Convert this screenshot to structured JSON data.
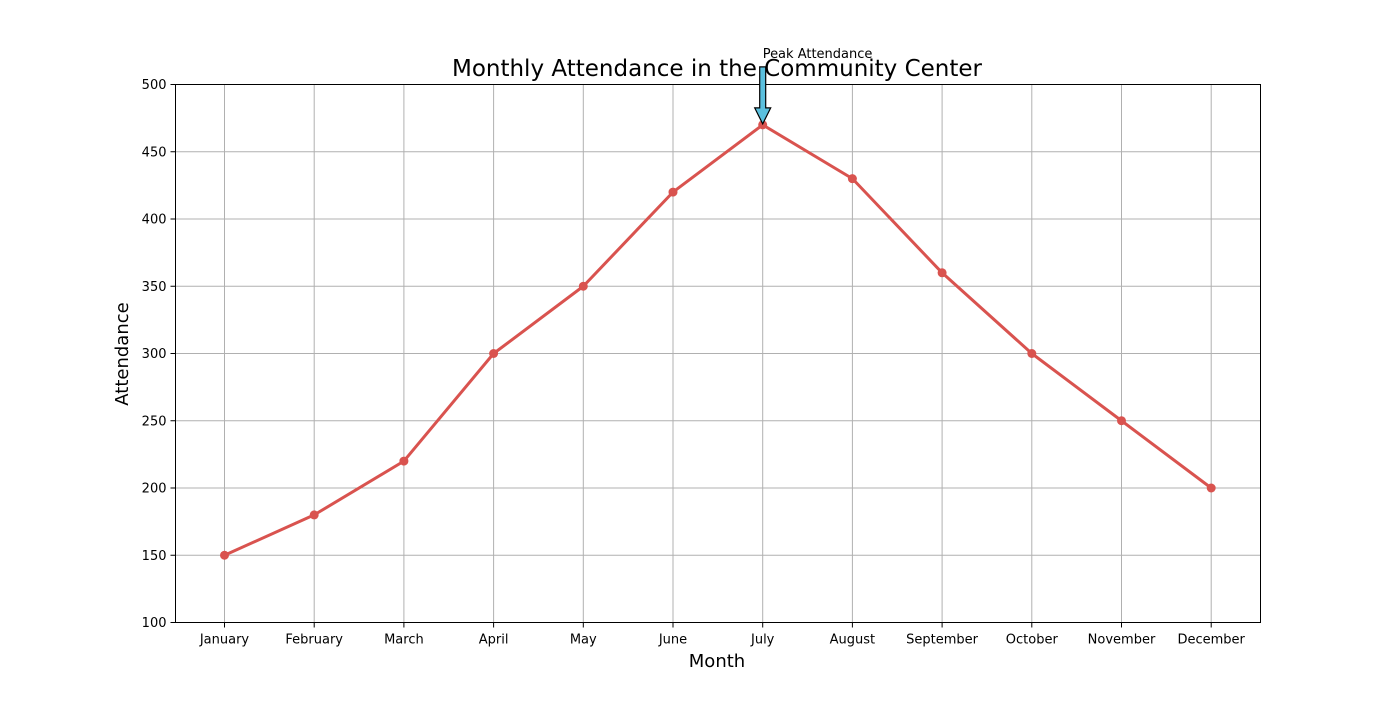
{
  "chart_data": {
    "type": "line",
    "title": "Monthly Attendance in the Community Center",
    "xlabel": "Month",
    "ylabel": "Attendance",
    "categories": [
      "January",
      "February",
      "March",
      "April",
      "May",
      "June",
      "July",
      "August",
      "September",
      "October",
      "November",
      "December"
    ],
    "series": [
      {
        "values": [
          150,
          180,
          220,
          300,
          350,
          420,
          470,
          430,
          360,
          300,
          250,
          200
        ],
        "color": "#d9534f",
        "marker": "circle"
      }
    ],
    "ylim": [
      100,
      500
    ],
    "yticks": [
      100,
      150,
      200,
      250,
      300,
      350,
      400,
      450,
      500
    ],
    "grid": true,
    "annotations": [
      {
        "text": "Peak Attendance",
        "category": "July",
        "value": 470,
        "arrow_color": "#5bc0de"
      }
    ]
  }
}
